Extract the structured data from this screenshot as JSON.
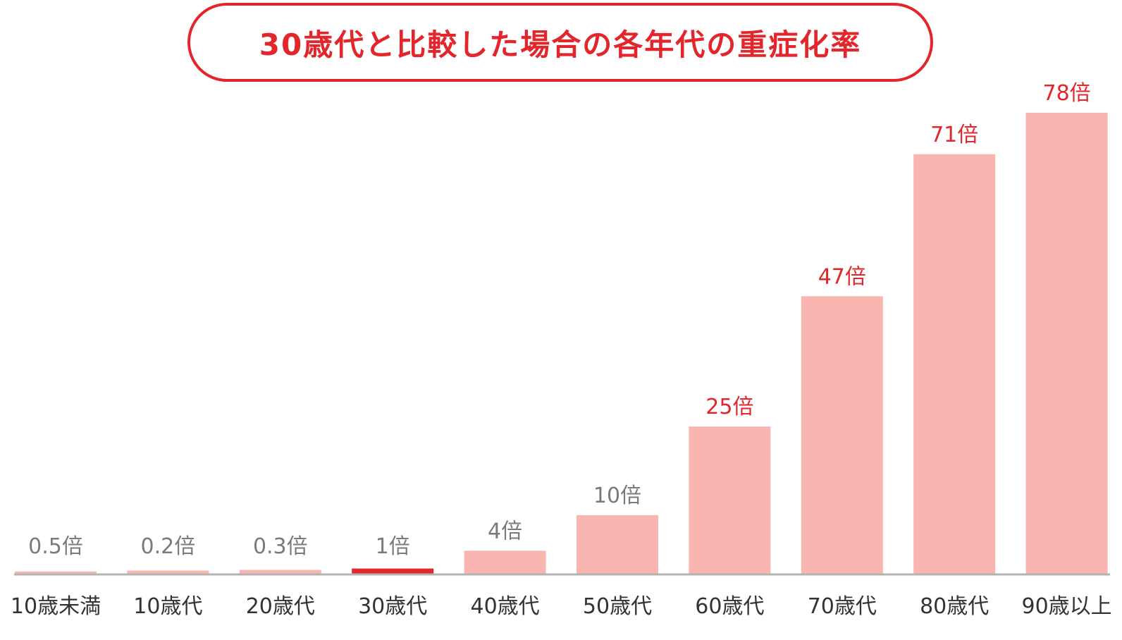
{
  "title": "30歳代と比較した場合の各年代の重症化率",
  "colors": {
    "accent": "#e2262b",
    "bar": "#f9b5af",
    "highlight_bar": "#e2262b",
    "axis": "#b3b3b3",
    "value_label_low": "#7a7a7a",
    "value_label_high": "#e2262b",
    "category_label": "#333333"
  },
  "chart_data": {
    "type": "bar",
    "title": "30歳代と比較した場合の各年代の重症化率",
    "categories": [
      "10歳未満",
      "10歳代",
      "20歳代",
      "30歳代",
      "40歳代",
      "50歳代",
      "60歳代",
      "70歳代",
      "80歳代",
      "90歳以上"
    ],
    "values": [
      0.5,
      0.2,
      0.3,
      1,
      4,
      10,
      25,
      47,
      71,
      78
    ],
    "value_labels": [
      "0.5倍",
      "0.2倍",
      "0.3倍",
      "1倍",
      "4倍",
      "10倍",
      "25倍",
      "47倍",
      "71倍",
      "78倍"
    ],
    "highlight_category": "30歳代",
    "xlabel": "",
    "ylabel": "",
    "ylim": [
      0,
      80
    ],
    "grid": false,
    "legend": "none"
  }
}
